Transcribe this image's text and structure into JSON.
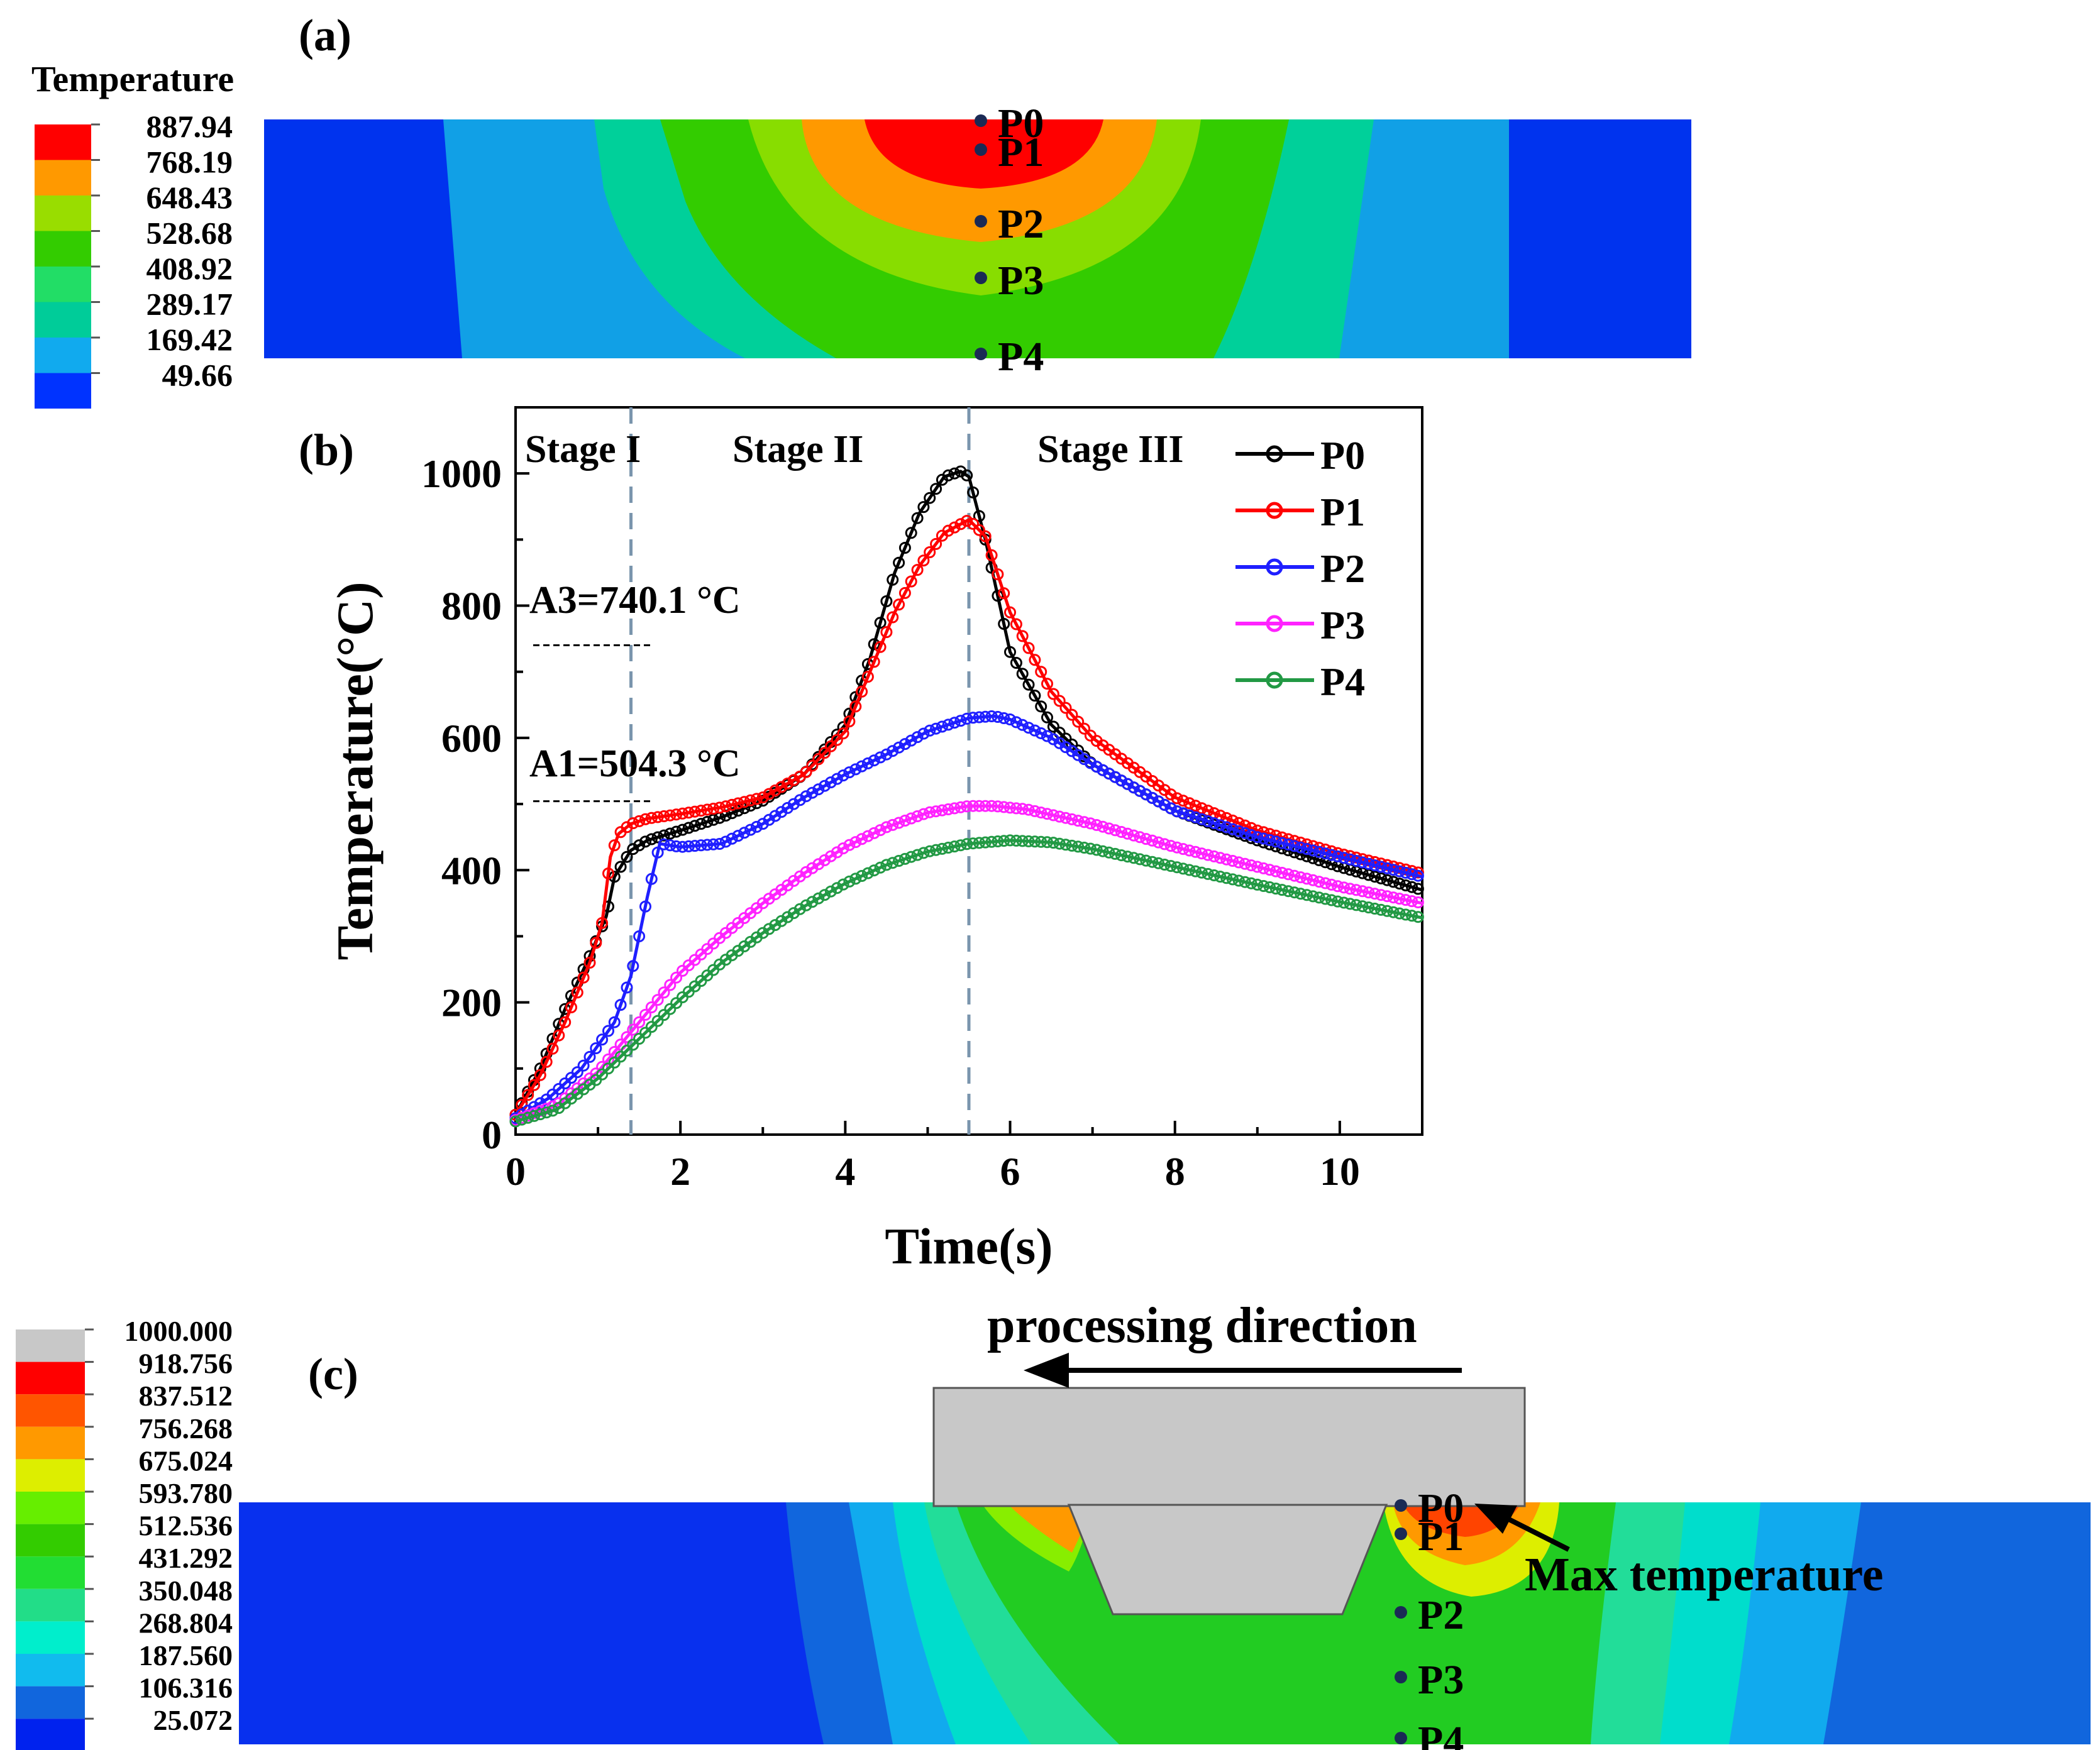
{
  "panel_a": {
    "label": "(a)",
    "legend_title": "Temperature",
    "legend_values": [
      "887.94",
      "768.19",
      "648.43",
      "528.68",
      "408.92",
      "289.17",
      "169.42",
      "49.66"
    ],
    "legend_colors": [
      "#ff0000",
      "#ff9900",
      "#99dd00",
      "#33cc00",
      "#22dd66",
      "#00cc99",
      "#11aaee",
      "#0033ff"
    ],
    "points": [
      "P0",
      "P1",
      "P2",
      "P3",
      "P4"
    ]
  },
  "panel_b": {
    "label": "(b)"
  },
  "panel_c": {
    "label": "(c)",
    "legend_values": [
      "1000.000",
      "918.756",
      "837.512",
      "756.268",
      "675.024",
      "593.780",
      "512.536",
      "431.292",
      "350.048",
      "268.804",
      "187.560",
      "106.316",
      "25.072"
    ],
    "legend_colors": [
      "#c8c8c8",
      "#ff0000",
      "#ff5500",
      "#ff9900",
      "#ddee00",
      "#66ee00",
      "#33cc00",
      "#22dd33",
      "#22dd88",
      "#00eecc",
      "#11bbee",
      "#1166dd",
      "#0022ee"
    ],
    "direction_label": "processing direction",
    "max_label": "Max temperature",
    "points": [
      "P0",
      "P1",
      "P2",
      "P3",
      "P4"
    ]
  },
  "chart_data": {
    "type": "line",
    "title": "",
    "xlabel": "Time(s)",
    "ylabel": "Temperature(°C)",
    "xlim": [
      0,
      11
    ],
    "ylim": [
      0,
      1100
    ],
    "xticks": [
      0,
      2,
      4,
      6,
      8,
      10
    ],
    "yticks": [
      0,
      200,
      400,
      600,
      800,
      1000
    ],
    "stage_labels": [
      "Stage I",
      "Stage II",
      "Stage III"
    ],
    "stage_boundaries": [
      1.4,
      5.5
    ],
    "annotations": [
      {
        "text": "A3=740.1 °C",
        "value": 740.1
      },
      {
        "text": "A1=504.3 °C",
        "value": 504.3
      }
    ],
    "legend_position": "top-right",
    "series": [
      {
        "name": "P0",
        "color": "#000000",
        "x": [
          0,
          0.3,
          0.6,
          0.9,
          1.0,
          1.1,
          1.2,
          1.4,
          1.6,
          2.0,
          2.5,
          3.0,
          3.5,
          4.0,
          4.3,
          4.6,
          4.9,
          5.2,
          5.4,
          5.5,
          5.7,
          6.0,
          6.5,
          7.0,
          8.0,
          9.0,
          10.0,
          11.0
        ],
        "y": [
          30,
          100,
          190,
          270,
          300,
          330,
          390,
          430,
          445,
          460,
          480,
          505,
          545,
          620,
          720,
          850,
          940,
          995,
          1003,
          995,
          900,
          730,
          620,
          560,
          490,
          445,
          405,
          370
        ]
      },
      {
        "name": "P1",
        "color": "#ff0000",
        "x": [
          0,
          0.3,
          0.6,
          0.9,
          1.05,
          1.15,
          1.25,
          1.4,
          1.6,
          2.0,
          2.5,
          3.0,
          3.5,
          4.0,
          4.3,
          4.6,
          4.9,
          5.2,
          5.5,
          5.7,
          6.0,
          6.5,
          7.0,
          8.0,
          9.0,
          10.0,
          11.0
        ],
        "y": [
          30,
          90,
          170,
          260,
          320,
          420,
          455,
          470,
          478,
          485,
          495,
          510,
          545,
          610,
          700,
          790,
          860,
          910,
          930,
          905,
          790,
          670,
          600,
          510,
          460,
          425,
          395
        ]
      },
      {
        "name": "P2",
        "color": "#1f1fff",
        "x": [
          0,
          0.4,
          0.8,
          1.2,
          1.4,
          1.6,
          1.75,
          2.0,
          2.5,
          3.0,
          3.5,
          4.0,
          4.5,
          5.0,
          5.5,
          5.8,
          6.0,
          6.5,
          7.0,
          8.0,
          9.0,
          10.0,
          11.0
        ],
        "y": [
          25,
          55,
          100,
          170,
          240,
          360,
          440,
          435,
          440,
          470,
          510,
          545,
          575,
          610,
          630,
          633,
          628,
          600,
          560,
          490,
          450,
          420,
          390
        ]
      },
      {
        "name": "P3",
        "color": "#ff22ff",
        "x": [
          0,
          0.5,
          1.0,
          1.5,
          2.0,
          2.5,
          3.0,
          3.5,
          4.0,
          4.5,
          5.0,
          5.5,
          5.8,
          6.2,
          7.0,
          8.0,
          9.0,
          10.0,
          11.0
        ],
        "y": [
          22,
          45,
          95,
          170,
          245,
          300,
          350,
          395,
          435,
          465,
          487,
          497,
          497,
          492,
          470,
          435,
          405,
          375,
          350
        ]
      },
      {
        "name": "P4",
        "color": "#229944",
        "x": [
          0,
          0.5,
          1.0,
          1.5,
          2.0,
          2.5,
          3.0,
          3.5,
          4.0,
          4.5,
          5.0,
          5.5,
          6.0,
          6.5,
          7.0,
          8.0,
          9.0,
          10.0,
          11.0
        ],
        "y": [
          20,
          38,
          85,
          145,
          205,
          260,
          305,
          345,
          380,
          408,
          428,
          440,
          445,
          442,
          432,
          405,
          378,
          352,
          328
        ]
      }
    ]
  }
}
